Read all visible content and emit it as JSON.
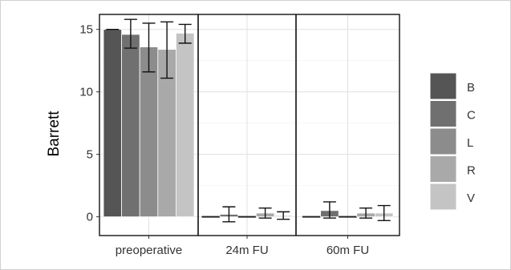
{
  "chart_data": {
    "type": "bar",
    "ylabel": "Barrett",
    "ylim": [
      -1.5,
      16.2
    ],
    "yticks": [
      0,
      5,
      10,
      15
    ],
    "grid": true,
    "legend_position": "right",
    "categories": [
      "preoperative",
      "24m FU",
      "60m FU"
    ],
    "series": [
      {
        "name": "B",
        "color": "#555555",
        "values": [
          15.0,
          0.0,
          0.0
        ],
        "err_low": [
          15.0,
          0.0,
          0.0
        ],
        "err_high": [
          15.0,
          0.0,
          0.0
        ]
      },
      {
        "name": "C",
        "color": "#707070",
        "values": [
          14.6,
          0.2,
          0.5
        ],
        "err_low": [
          13.5,
          -0.4,
          -0.1
        ],
        "err_high": [
          15.8,
          0.8,
          1.2
        ]
      },
      {
        "name": "L",
        "color": "#8c8c8c",
        "values": [
          13.6,
          0.0,
          0.0
        ],
        "err_low": [
          11.6,
          0.0,
          0.0
        ],
        "err_high": [
          15.5,
          0.0,
          0.0
        ]
      },
      {
        "name": "R",
        "color": "#a9a9a9",
        "values": [
          13.4,
          0.3,
          0.3
        ],
        "err_low": [
          11.1,
          -0.1,
          -0.1
        ],
        "err_high": [
          15.6,
          0.7,
          0.7
        ]
      },
      {
        "name": "V",
        "color": "#c4c4c4",
        "values": [
          14.7,
          0.1,
          0.3
        ],
        "err_low": [
          13.9,
          -0.2,
          -0.3
        ],
        "err_high": [
          15.4,
          0.4,
          0.9
        ]
      }
    ]
  }
}
